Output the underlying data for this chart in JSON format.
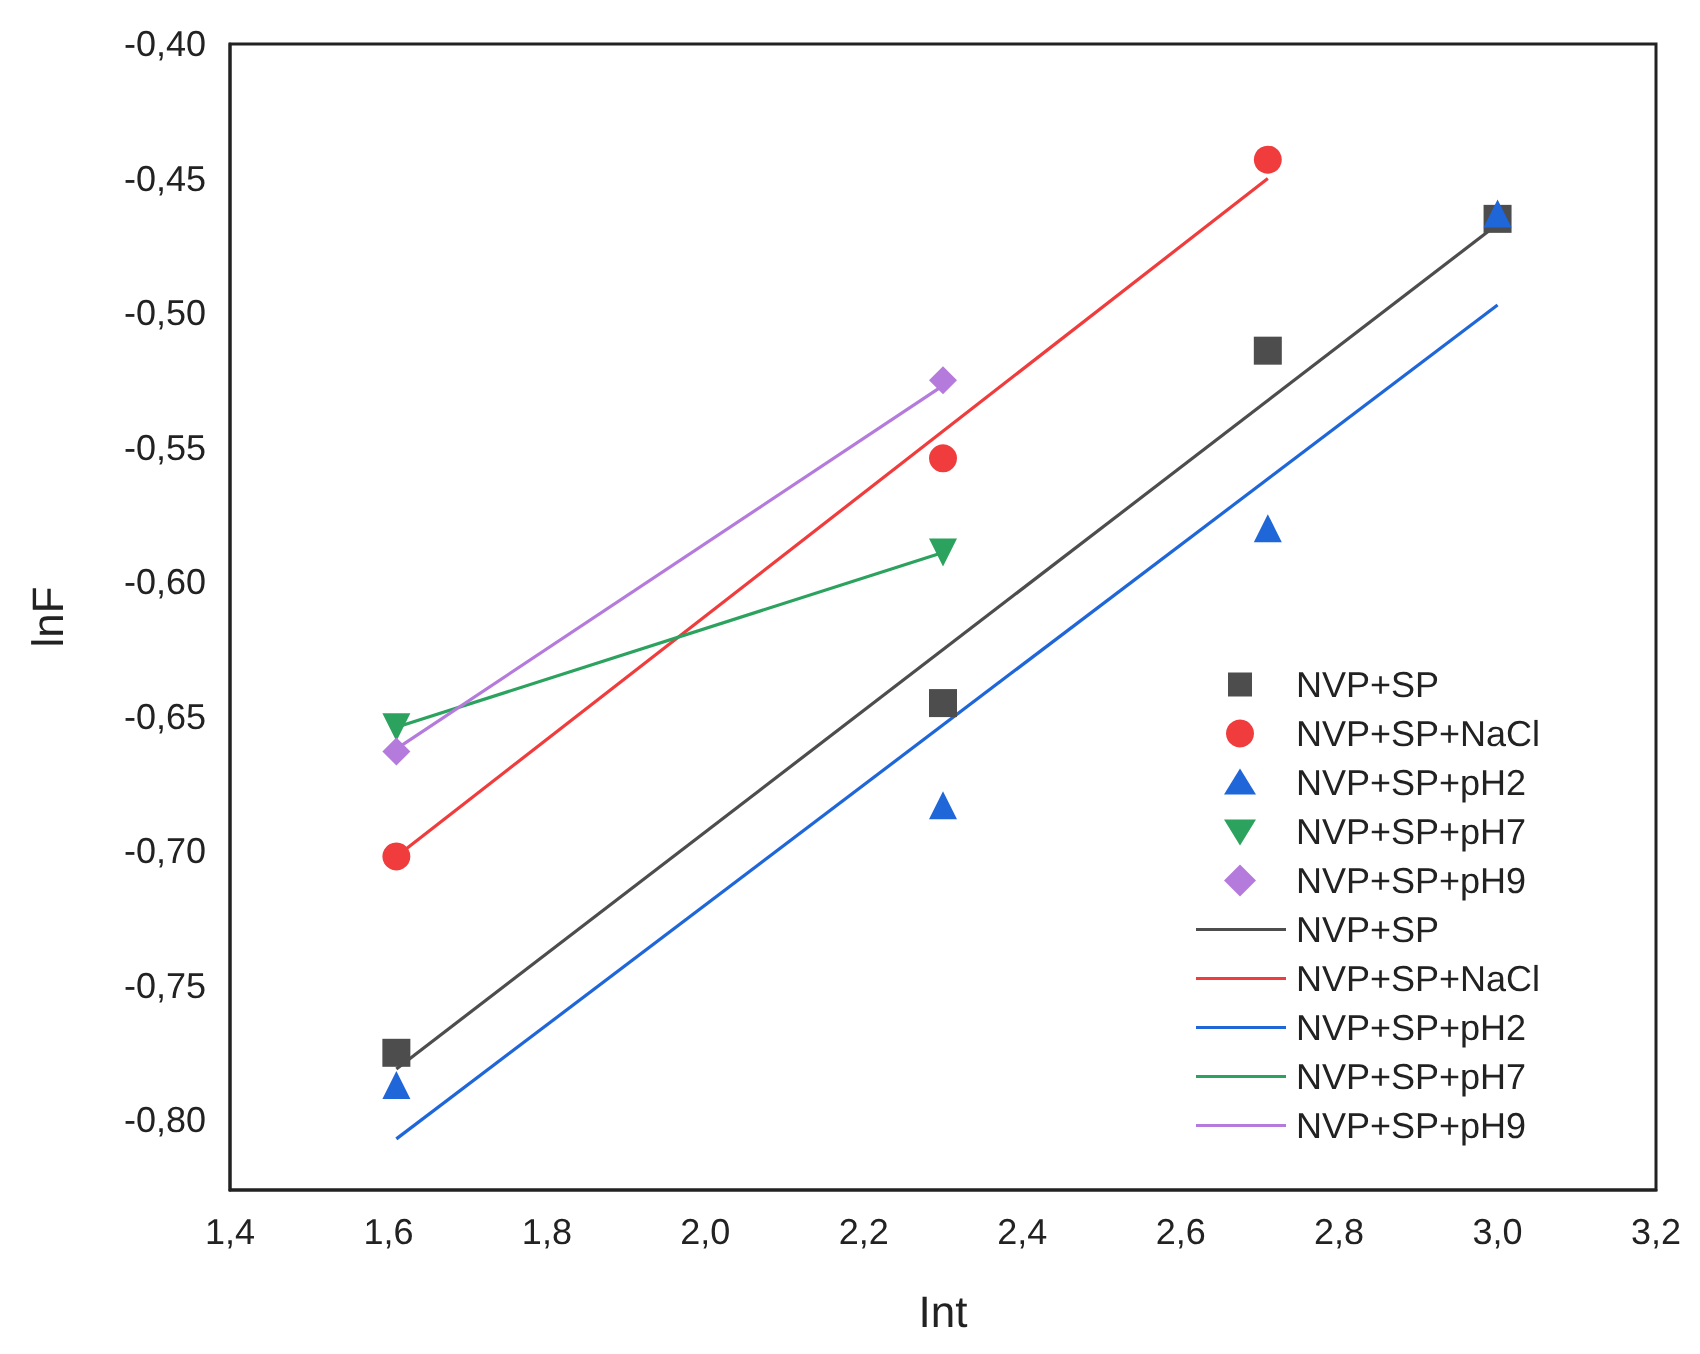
{
  "chart_data": {
    "type": "scatter",
    "xlabel": "Int",
    "ylabel": "lnF",
    "xlim": [
      1.4,
      3.2
    ],
    "xticks": [
      {
        "value": 1.4,
        "label": "1,4"
      },
      {
        "value": 1.6,
        "label": "1,6"
      },
      {
        "value": 1.8,
        "label": "1,8"
      },
      {
        "value": 2.0,
        "label": "2,0"
      },
      {
        "value": 2.2,
        "label": "2,2"
      },
      {
        "value": 2.4,
        "label": "2,4"
      },
      {
        "value": 2.6,
        "label": "2,6"
      },
      {
        "value": 2.8,
        "label": "2,8"
      },
      {
        "value": 3.0,
        "label": "3,0"
      },
      {
        "value": 3.2,
        "label": "3,2"
      }
    ],
    "ylim": [
      -0.826,
      -0.4
    ],
    "yticks": [
      {
        "value": -0.8,
        "label": "-0,80"
      },
      {
        "value": -0.75,
        "label": "-0,75"
      },
      {
        "value": -0.7,
        "label": "-0,70"
      },
      {
        "value": -0.65,
        "label": "-0,65"
      },
      {
        "value": -0.6,
        "label": "-0,60"
      },
      {
        "value": -0.55,
        "label": "-0,55"
      },
      {
        "value": -0.5,
        "label": "-0,50"
      },
      {
        "value": -0.45,
        "label": "-0,45"
      },
      {
        "value": -0.4,
        "label": "-0,40"
      }
    ],
    "grid": false,
    "legend": "bottom right",
    "series": [
      {
        "name": "NVP+SP",
        "color": "#4d4d4d",
        "marker": "square",
        "x": [
          1.61,
          2.3,
          2.71,
          3.0
        ],
        "values": [
          -0.775,
          -0.645,
          -0.514,
          -0.465
        ]
      },
      {
        "name": "NVP+SP+NaCl",
        "color": "#f03c3c",
        "marker": "circle",
        "x": [
          1.61,
          2.3,
          2.71
        ],
        "values": [
          -0.702,
          -0.554,
          -0.443
        ]
      },
      {
        "name": "NVP+SP+pH2",
        "color": "#1f66d9",
        "marker": "triangle",
        "x": [
          1.61,
          2.3,
          2.71,
          3.0
        ],
        "values": [
          -0.787,
          -0.683,
          -0.58,
          -0.463
        ]
      },
      {
        "name": "NVP+SP+pH7",
        "color": "#2ca25f",
        "marker": "triangle-down",
        "x": [
          1.61,
          2.3
        ],
        "values": [
          -0.654,
          -0.589
        ]
      },
      {
        "name": "NVP+SP+pH9",
        "color": "#b57bdc",
        "marker": "diamond",
        "x": [
          1.61,
          2.3
        ],
        "values": [
          -0.663,
          -0.525
        ]
      },
      {
        "type": "line",
        "name": "NVP+SP",
        "color": "#4d4d4d",
        "marker": "none",
        "x": [
          1.61,
          3.0
        ],
        "values": [
          -0.781,
          -0.467
        ]
      },
      {
        "type": "line",
        "name": "NVP+SP+NaCl",
        "color": "#f03c3c",
        "marker": "none",
        "x": [
          1.61,
          2.71
        ],
        "values": [
          -0.702,
          -0.45
        ]
      },
      {
        "type": "line",
        "name": "NVP+SP+pH2",
        "color": "#1f66d9",
        "marker": "none",
        "x": [
          1.61,
          3.0
        ],
        "values": [
          -0.807,
          -0.497
        ]
      },
      {
        "type": "line",
        "name": "NVP+SP+pH7",
        "color": "#2ca25f",
        "marker": "none",
        "x": [
          1.61,
          2.3
        ],
        "values": [
          -0.654,
          -0.589
        ]
      },
      {
        "type": "line",
        "name": "NVP+SP+pH9",
        "color": "#b57bdc",
        "marker": "none",
        "x": [
          1.61,
          2.3
        ],
        "values": [
          -0.662,
          -0.527
        ]
      }
    ]
  }
}
